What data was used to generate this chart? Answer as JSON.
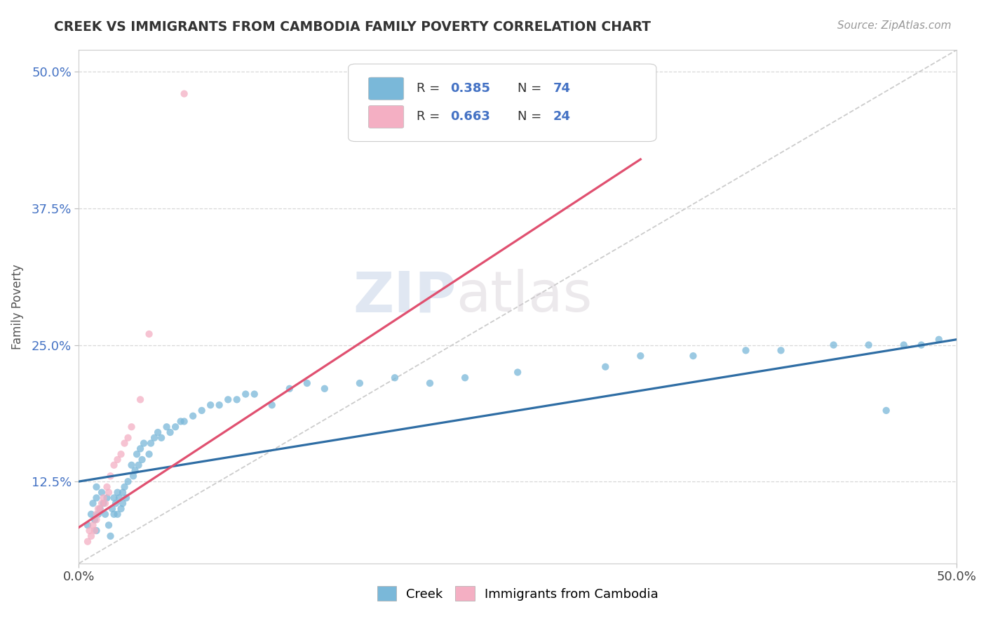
{
  "title": "CREEK VS IMMIGRANTS FROM CAMBODIA FAMILY POVERTY CORRELATION CHART",
  "source_text": "Source: ZipAtlas.com",
  "ylabel": "Family Poverty",
  "xlim": [
    0.0,
    0.5
  ],
  "ylim": [
    0.05,
    0.52
  ],
  "ytick_labels": [
    "12.5%",
    "25.0%",
    "37.5%",
    "50.0%"
  ],
  "ytick_values": [
    0.125,
    0.25,
    0.375,
    0.5
  ],
  "xtick_labels": [
    "0.0%",
    "50.0%"
  ],
  "xtick_values": [
    0.0,
    0.5
  ],
  "watermark_zip": "ZIP",
  "watermark_atlas": "atlas",
  "legend_r1": "0.385",
  "legend_n1": "74",
  "legend_r2": "0.663",
  "legend_n2": "24",
  "creek_color": "#7ab8d9",
  "cambodia_color": "#f4afc3",
  "creek_line_color": "#2e6da4",
  "cambodia_line_color": "#e05070",
  "trendline_diagonal_color": "#cccccc",
  "background_color": "#ffffff",
  "grid_color": "#d8d8d8",
  "creek_x": [
    0.005,
    0.007,
    0.008,
    0.009,
    0.01,
    0.01,
    0.01,
    0.011,
    0.012,
    0.013,
    0.014,
    0.015,
    0.016,
    0.017,
    0.018,
    0.019,
    0.02,
    0.02,
    0.021,
    0.022,
    0.022,
    0.023,
    0.024,
    0.025,
    0.025,
    0.026,
    0.027,
    0.028,
    0.03,
    0.031,
    0.032,
    0.033,
    0.034,
    0.035,
    0.036,
    0.037,
    0.04,
    0.041,
    0.043,
    0.045,
    0.047,
    0.05,
    0.052,
    0.055,
    0.058,
    0.06,
    0.065,
    0.07,
    0.075,
    0.08,
    0.085,
    0.09,
    0.095,
    0.1,
    0.11,
    0.12,
    0.13,
    0.14,
    0.16,
    0.18,
    0.2,
    0.22,
    0.25,
    0.3,
    0.32,
    0.35,
    0.38,
    0.4,
    0.43,
    0.45,
    0.46,
    0.47,
    0.48,
    0.49
  ],
  "creek_y": [
    0.085,
    0.095,
    0.105,
    0.09,
    0.11,
    0.12,
    0.08,
    0.095,
    0.1,
    0.115,
    0.105,
    0.095,
    0.11,
    0.085,
    0.075,
    0.1,
    0.11,
    0.095,
    0.105,
    0.095,
    0.115,
    0.11,
    0.1,
    0.115,
    0.105,
    0.12,
    0.11,
    0.125,
    0.14,
    0.13,
    0.135,
    0.15,
    0.14,
    0.155,
    0.145,
    0.16,
    0.15,
    0.16,
    0.165,
    0.17,
    0.165,
    0.175,
    0.17,
    0.175,
    0.18,
    0.18,
    0.185,
    0.19,
    0.195,
    0.195,
    0.2,
    0.2,
    0.205,
    0.205,
    0.195,
    0.21,
    0.215,
    0.21,
    0.215,
    0.22,
    0.215,
    0.22,
    0.225,
    0.23,
    0.24,
    0.24,
    0.245,
    0.245,
    0.25,
    0.25,
    0.19,
    0.25,
    0.25,
    0.255
  ],
  "cambodia_x": [
    0.005,
    0.006,
    0.007,
    0.008,
    0.009,
    0.01,
    0.01,
    0.011,
    0.012,
    0.013,
    0.014,
    0.015,
    0.016,
    0.017,
    0.018,
    0.02,
    0.022,
    0.024,
    0.026,
    0.028,
    0.03,
    0.035,
    0.04,
    0.06
  ],
  "cambodia_y": [
    0.07,
    0.08,
    0.075,
    0.085,
    0.08,
    0.09,
    0.095,
    0.1,
    0.1,
    0.105,
    0.11,
    0.105,
    0.12,
    0.115,
    0.13,
    0.14,
    0.145,
    0.15,
    0.16,
    0.165,
    0.175,
    0.2,
    0.26,
    0.48
  ]
}
